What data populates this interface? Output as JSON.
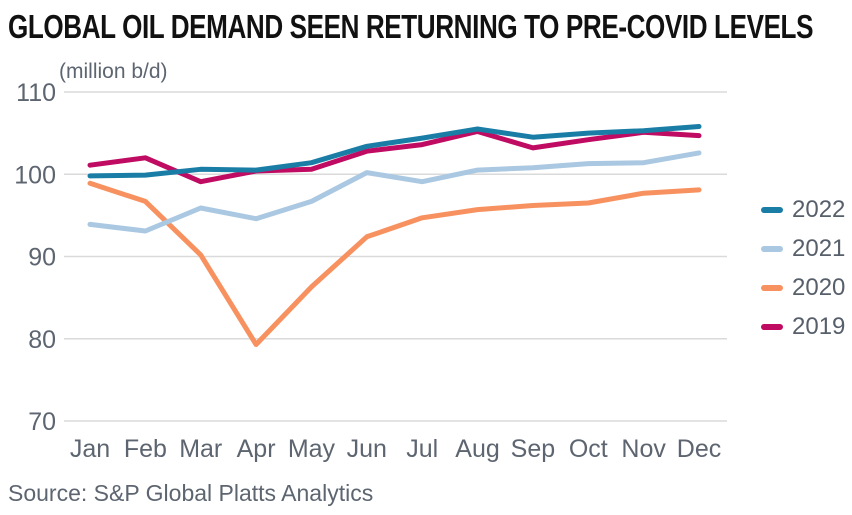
{
  "title": "GLOBAL OIL DEMAND SEEN RETURNING TO PRE-COVID LEVELS",
  "units_label": "(million b/d)",
  "source": "Source: S&P Global Platts Analytics",
  "colors": {
    "grid": "#dadada",
    "tick_text": "#5d6570",
    "title_text": "#111111",
    "legend_text": "#575f6b"
  },
  "chart_data": {
    "type": "line",
    "title": "GLOBAL OIL DEMAND SEEN RETURNING TO PRE-COVID LEVELS",
    "ylabel": "(million b/d)",
    "categories": [
      "Jan",
      "Feb",
      "Mar",
      "Apr",
      "May",
      "Jun",
      "Jul",
      "Aug",
      "Sep",
      "Oct",
      "Nov",
      "Dec"
    ],
    "series": [
      {
        "name": "2022",
        "color": "#1a7da6",
        "values": [
          99.8,
          99.9,
          100.6,
          100.5,
          101.4,
          103.4,
          104.4,
          105.5,
          104.5,
          105.0,
          105.3,
          105.8
        ]
      },
      {
        "name": "2021",
        "color": "#aac8e1",
        "values": [
          93.9,
          93.1,
          95.9,
          94.6,
          96.7,
          100.2,
          99.1,
          100.5,
          100.8,
          101.3,
          101.4,
          102.6
        ]
      },
      {
        "name": "2020",
        "color": "#f79260",
        "values": [
          98.9,
          96.7,
          90.2,
          79.3,
          86.3,
          92.4,
          94.7,
          95.7,
          96.2,
          96.5,
          97.7,
          98.1
        ]
      },
      {
        "name": "2019",
        "color": "#c00b63",
        "values": [
          101.1,
          102.0,
          99.1,
          100.4,
          100.6,
          102.8,
          103.6,
          105.2,
          103.2,
          104.2,
          105.1,
          104.7
        ]
      }
    ],
    "ylim": [
      70,
      110
    ],
    "yticks": [
      70,
      80,
      90,
      100,
      110
    ],
    "grid": true,
    "legend_position": "right"
  }
}
